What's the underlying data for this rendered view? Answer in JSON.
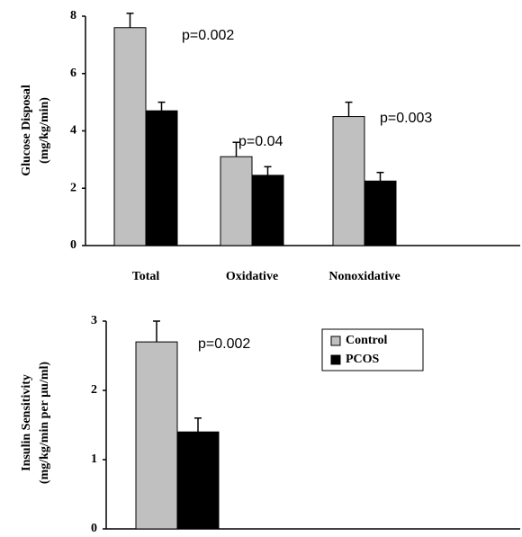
{
  "chart_data": [
    {
      "type": "bar",
      "y_label": [
        "Glucose Disposal",
        "(mg/kg/min)"
      ],
      "categories": [
        "Total",
        "Oxidative",
        "Nonoxidative"
      ],
      "series": [
        {
          "name": "Control",
          "color": "#c0c0c0",
          "values": [
            7.6,
            3.1,
            4.5
          ],
          "errors": [
            0.5,
            0.5,
            0.5
          ]
        },
        {
          "name": "PCOS",
          "color": "#000000",
          "values": [
            4.7,
            2.45,
            2.25
          ],
          "errors": [
            0.3,
            0.3,
            0.3
          ]
        }
      ],
      "annotations": [
        "p=0.002",
        "p=0.04",
        "p=0.003"
      ],
      "ylim": [
        0,
        8
      ],
      "yticks": [
        0,
        2,
        4,
        6,
        8
      ]
    },
    {
      "type": "bar",
      "y_label": [
        "Insulin Sensitivity",
        "(mg/kg/min per µu/ml)"
      ],
      "categories": [
        null
      ],
      "series": [
        {
          "name": "Control",
          "color": "#c0c0c0",
          "values": [
            2.7
          ],
          "errors": [
            0.3
          ]
        },
        {
          "name": "PCOS",
          "color": "#000000",
          "values": [
            1.4
          ],
          "errors": [
            0.2
          ]
        }
      ],
      "annotations": [
        "p=0.002"
      ],
      "ylim": [
        0,
        3
      ],
      "yticks": [
        0,
        1,
        2,
        3
      ],
      "legend": "top-right"
    }
  ]
}
